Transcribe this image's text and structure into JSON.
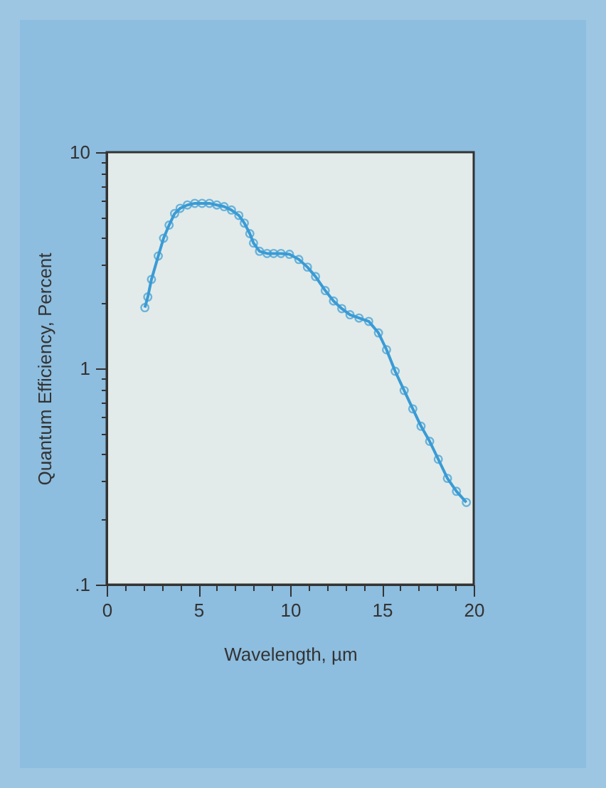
{
  "chart_data": {
    "type": "line",
    "xlabel": "Wavelength, µm",
    "ylabel": "Quantum Efficiency, Percent",
    "x": [
      2.08,
      2.24,
      2.44,
      2.81,
      3.1,
      3.4,
      3.7,
      4.0,
      4.4,
      4.8,
      5.2,
      5.6,
      6.0,
      6.4,
      6.8,
      7.2,
      7.5,
      7.8,
      8.0,
      8.33,
      8.74,
      9.1,
      9.5,
      9.96,
      10.47,
      10.94,
      11.38,
      11.91,
      12.36,
      12.81,
      13.26,
      13.75,
      14.28,
      14.81,
      15.25,
      15.72,
      16.21,
      16.68,
      17.13,
      17.6,
      18.07,
      18.57,
      19.06,
      19.6
    ],
    "series": [
      {
        "color": "#3a9bd5",
        "values": [
          1.91,
          2.14,
          2.58,
          3.31,
          4.0,
          4.6,
          5.2,
          5.5,
          5.7,
          5.8,
          5.8,
          5.8,
          5.7,
          5.6,
          5.4,
          5.1,
          4.7,
          4.2,
          3.8,
          3.48,
          3.4,
          3.4,
          3.4,
          3.37,
          3.19,
          2.94,
          2.66,
          2.29,
          2.05,
          1.89,
          1.77,
          1.71,
          1.65,
          1.46,
          1.22,
          0.97,
          0.79,
          0.65,
          0.54,
          0.46,
          0.38,
          0.31,
          0.27,
          0.24
        ]
      }
    ],
    "log": "y",
    "marker": "circle",
    "line_style": "solid",
    "grid": false,
    "legend": false,
    "xlim": [
      0,
      20
    ],
    "xticks": [
      0,
      {
        "value": 1,
        "label": null
      },
      {
        "value": 2,
        "label": null
      },
      {
        "value": 3,
        "label": null
      },
      {
        "value": 4,
        "label": null
      },
      5,
      {
        "value": 6,
        "label": null
      },
      {
        "value": 7,
        "label": null
      },
      {
        "value": 8,
        "label": null
      },
      {
        "value": 9,
        "label": null
      },
      10,
      {
        "value": 11,
        "label": null
      },
      {
        "value": 12,
        "label": null
      },
      {
        "value": 13,
        "label": null
      },
      {
        "value": 14,
        "label": null
      },
      15,
      {
        "value": 16,
        "label": null
      },
      {
        "value": 17,
        "label": null
      },
      {
        "value": 18,
        "label": null
      },
      {
        "value": 19,
        "label": null
      },
      20
    ],
    "ylim": [
      0.1,
      10
    ],
    "yticks": [
      {
        "value": 0.1,
        "label": ".1"
      },
      {
        "value": 0.2,
        "label": null
      },
      {
        "value": 0.3,
        "label": null
      },
      {
        "value": 0.4,
        "label": null
      },
      {
        "value": 0.5,
        "label": null
      },
      {
        "value": 0.6,
        "label": null
      },
      {
        "value": 0.7,
        "label": null
      },
      {
        "value": 0.8,
        "label": null
      },
      {
        "value": 0.9,
        "label": null
      },
      1,
      {
        "value": 2,
        "label": null
      },
      {
        "value": 3,
        "label": null
      },
      {
        "value": 4,
        "label": null
      },
      {
        "value": 5,
        "label": null
      },
      {
        "value": 6,
        "label": null
      },
      {
        "value": 7,
        "label": null
      },
      {
        "value": 8,
        "label": null
      },
      {
        "value": 9,
        "label": null
      },
      10
    ]
  }
}
